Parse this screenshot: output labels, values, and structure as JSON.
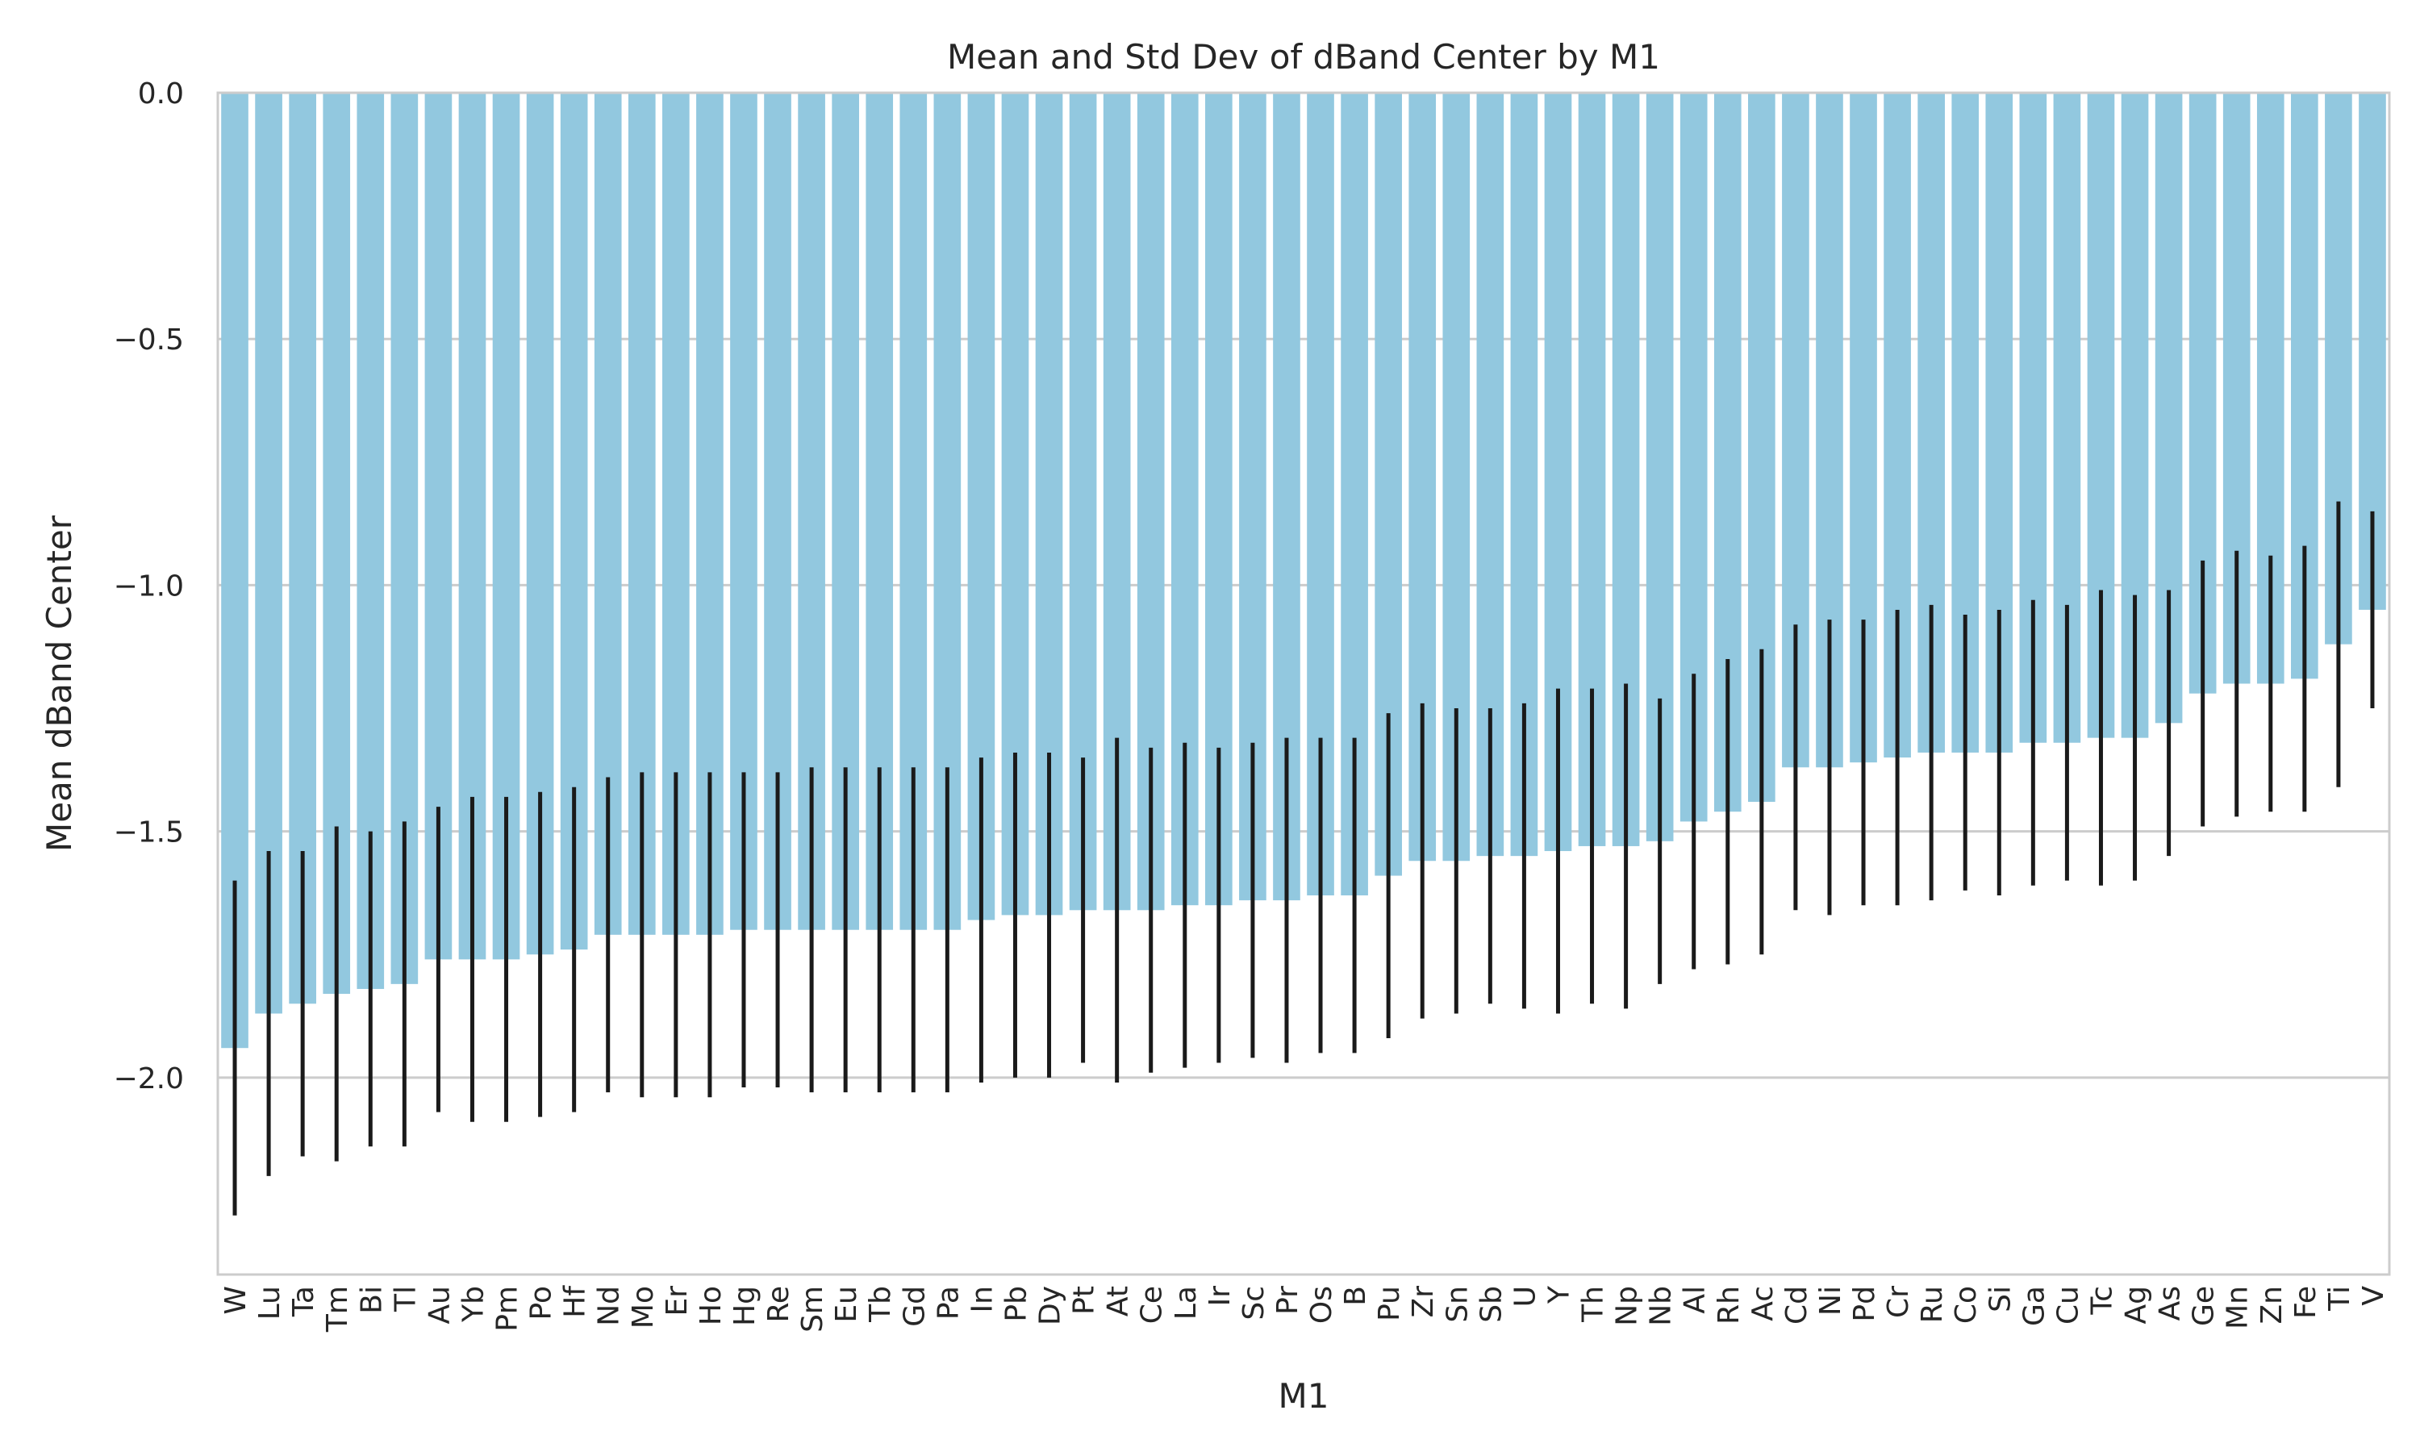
{
  "chart_data": {
    "type": "bar",
    "title": "Mean and Std Dev of dBand Center by M1",
    "xlabel": "M1",
    "ylabel": "Mean dBand Center",
    "ylim": [
      -2.4,
      0.0
    ],
    "yticks": [
      0.0,
      -0.5,
      -1.0,
      -1.5,
      -2.0
    ],
    "ytick_labels": [
      "0.0",
      "−0.5",
      "−1.0",
      "−1.5",
      "−2.0"
    ],
    "grid": true,
    "legend": "none",
    "colors": {
      "bar": "#92c8df",
      "error": "#1a1a1a",
      "grid": "#cccccc",
      "frame": "#cccccc"
    },
    "categories": [
      "W",
      "Lu",
      "Ta",
      "Tm",
      "Bi",
      "Tl",
      "Au",
      "Yb",
      "Pm",
      "Po",
      "Hf",
      "Nd",
      "Mo",
      "Er",
      "Ho",
      "Hg",
      "Re",
      "Sm",
      "Eu",
      "Tb",
      "Gd",
      "Pa",
      "In",
      "Pb",
      "Dy",
      "Pt",
      "At",
      "Ce",
      "La",
      "Ir",
      "Sc",
      "Pr",
      "Os",
      "B",
      "Pu",
      "Zr",
      "Sn",
      "Sb",
      "U",
      "Y",
      "Th",
      "Np",
      "Nb",
      "Al",
      "Rh",
      "Ac",
      "Cd",
      "Ni",
      "Pd",
      "Cr",
      "Ru",
      "Co",
      "Si",
      "Ga",
      "Cu",
      "Tc",
      "Ag",
      "As",
      "Ge",
      "Mn",
      "Zn",
      "Fe",
      "Ti",
      "V"
    ],
    "values": [
      -1.94,
      -1.87,
      -1.85,
      -1.83,
      -1.82,
      -1.81,
      -1.76,
      -1.76,
      -1.76,
      -1.75,
      -1.74,
      -1.71,
      -1.71,
      -1.71,
      -1.71,
      -1.7,
      -1.7,
      -1.7,
      -1.7,
      -1.7,
      -1.7,
      -1.7,
      -1.68,
      -1.67,
      -1.67,
      -1.66,
      -1.66,
      -1.66,
      -1.65,
      -1.65,
      -1.64,
      -1.64,
      -1.63,
      -1.63,
      -1.59,
      -1.56,
      -1.56,
      -1.55,
      -1.55,
      -1.54,
      -1.53,
      -1.53,
      -1.52,
      -1.48,
      -1.46,
      -1.44,
      -1.37,
      -1.37,
      -1.36,
      -1.35,
      -1.34,
      -1.34,
      -1.34,
      -1.32,
      -1.32,
      -1.31,
      -1.31,
      -1.28,
      -1.22,
      -1.2,
      -1.2,
      -1.19,
      -1.12,
      -1.05
    ],
    "std": [
      0.34,
      0.33,
      0.31,
      0.34,
      0.32,
      0.33,
      0.31,
      0.33,
      0.33,
      0.33,
      0.33,
      0.32,
      0.33,
      0.33,
      0.33,
      0.32,
      0.32,
      0.33,
      0.33,
      0.33,
      0.33,
      0.33,
      0.33,
      0.33,
      0.33,
      0.31,
      0.35,
      0.33,
      0.33,
      0.32,
      0.32,
      0.33,
      0.32,
      0.32,
      0.33,
      0.32,
      0.31,
      0.3,
      0.31,
      0.33,
      0.32,
      0.33,
      0.29,
      0.3,
      0.31,
      0.31,
      0.29,
      0.3,
      0.29,
      0.3,
      0.3,
      0.28,
      0.29,
      0.29,
      0.28,
      0.3,
      0.29,
      0.27,
      0.27,
      0.27,
      0.26,
      0.27,
      0.29,
      0.2
    ]
  }
}
